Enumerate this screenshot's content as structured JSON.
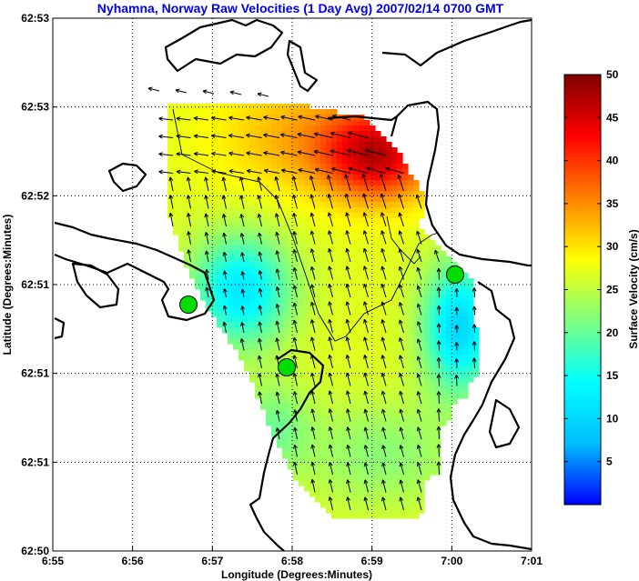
{
  "chart_data": {
    "type": "heatmap",
    "title": "Nyhamna, Norway Raw Velocities (1 Day Avg) 2007/02/14 0700 GMT",
    "xlabel": "Longitude (Degrees:Minutes)",
    "ylabel": "Latitude (Degrees:Minutes)",
    "x_ticks": [
      "6:55",
      "6:56",
      "6:57",
      "6:58",
      "6:59",
      "7:00",
      "7:01"
    ],
    "y_ticks": [
      "62:50",
      "62:51",
      "62:51",
      "62:51",
      "62:52",
      "62:53",
      "62:53"
    ],
    "grid": true,
    "colorbar": {
      "label": "Surface Velocity (cm/s)",
      "ticks": [
        "5",
        "10",
        "15",
        "20",
        "25",
        "30",
        "35",
        "40",
        "45",
        "50"
      ],
      "min": 0,
      "max": 50,
      "colormap": [
        "#0000ff",
        "#00bfff",
        "#00ffff",
        "#7fff7f",
        "#ffff00",
        "#ff7f00",
        "#ff0000",
        "#800000"
      ]
    },
    "markers": [
      {
        "name": "site-west",
        "color": "#00dd00"
      },
      {
        "name": "site-south",
        "color": "#00dd00"
      },
      {
        "name": "site-east",
        "color": "#00dd00"
      }
    ],
    "speed_field_approx": {
      "description_units": "cm/s",
      "northeast_max": 45,
      "center": 27,
      "west": 12,
      "southeast": 10,
      "south": 20
    }
  }
}
